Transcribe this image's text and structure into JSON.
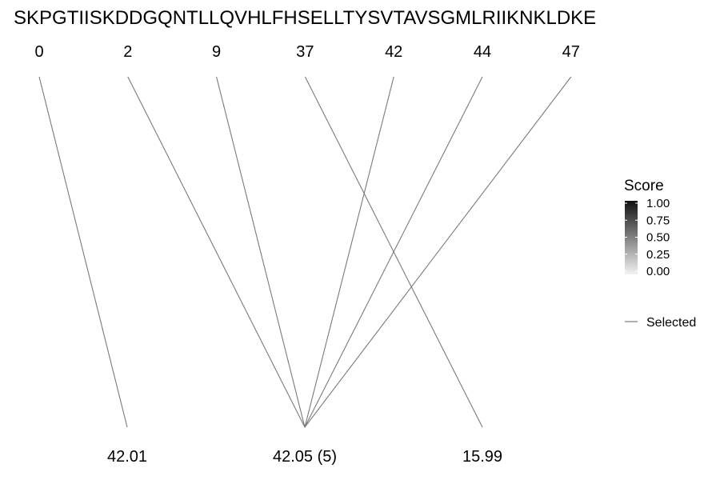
{
  "chart_data": {
    "type": "diagram",
    "sequence": "SKPGTIISKDDGQNTLLQVHLFHSELLTYSVTAVSGMLRIIKNKLDKE",
    "top_positions": [
      "0",
      "2",
      "9",
      "37",
      "42",
      "44",
      "47"
    ],
    "bottom_labels": [
      "42.01",
      "42.05 (5)",
      "15.99"
    ],
    "connections": [
      {
        "from": 0,
        "to": 0,
        "score": 1.0
      },
      {
        "from": 1,
        "to": 1,
        "score": 1.0
      },
      {
        "from": 2,
        "to": 1,
        "score": 1.0
      },
      {
        "from": 4,
        "to": 1,
        "score": 1.0
      },
      {
        "from": 5,
        "to": 1,
        "score": 1.0
      },
      {
        "from": 6,
        "to": 1,
        "score": 1.0
      },
      {
        "from": 3,
        "to": 2,
        "score": 1.0
      }
    ],
    "legend": {
      "title": "Score",
      "ticks": [
        "1.00",
        "0.75",
        "0.50",
        "0.25",
        "0.00"
      ],
      "gradient_colors": [
        "#111111",
        "#f2f2f2"
      ],
      "selected_label": "Selected",
      "line_color": "#7a7a7a"
    }
  }
}
